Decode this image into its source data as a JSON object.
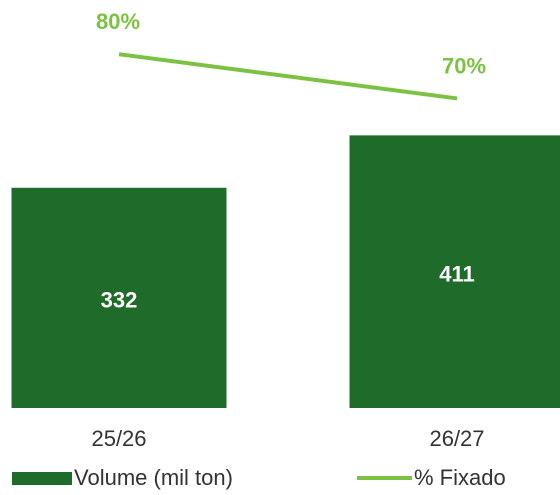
{
  "chart_data": {
    "type": "bar-line",
    "categories": [
      "25/26",
      "26/27"
    ],
    "series": [
      {
        "name": "Volume (mil ton)",
        "type": "bar",
        "color": "#1e6b2a",
        "values": [
          332,
          411
        ]
      },
      {
        "name": "% Fixado",
        "type": "line",
        "axis": "y2",
        "color": "#7cc242",
        "values": [
          80,
          70
        ],
        "value_labels": [
          "80%",
          "70%"
        ]
      }
    ],
    "ylim": [
      0,
      600
    ],
    "y2lim": [
      0,
      90
    ],
    "grid": false,
    "legend": "bottom"
  }
}
